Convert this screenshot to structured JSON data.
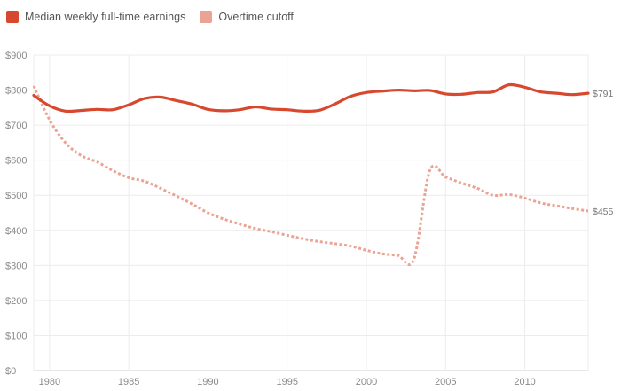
{
  "chart_data": {
    "type": "line",
    "title": "",
    "xlabel": "",
    "ylabel": "",
    "xlim": [
      1979,
      2014
    ],
    "ylim": [
      0,
      900
    ],
    "x_ticks": [
      1980,
      1985,
      1990,
      1995,
      2000,
      2005,
      2010
    ],
    "y_ticks": [
      0,
      100,
      200,
      300,
      400,
      500,
      600,
      700,
      800,
      900
    ],
    "y_tick_labels": [
      "$0",
      "$100",
      "$200",
      "$300",
      "$400",
      "$500",
      "$600",
      "$700",
      "$800",
      "$900"
    ],
    "grid": true,
    "legend_position": "top-left",
    "series": [
      {
        "name": "Median weekly full-time earnings",
        "color": "#d6492f",
        "style": "solid",
        "end_label": "$791",
        "x": [
          1979,
          1980,
          1981,
          1982,
          1983,
          1984,
          1985,
          1986,
          1987,
          1988,
          1989,
          1990,
          1991,
          1992,
          1993,
          1994,
          1995,
          1996,
          1997,
          1998,
          1999,
          2000,
          2001,
          2002,
          2003,
          2004,
          2005,
          2006,
          2007,
          2008,
          2009,
          2010,
          2011,
          2012,
          2013,
          2014
        ],
        "values": [
          785,
          755,
          740,
          742,
          745,
          744,
          758,
          776,
          780,
          770,
          760,
          745,
          741,
          744,
          752,
          746,
          744,
          740,
          742,
          760,
          782,
          793,
          797,
          800,
          798,
          799,
          789,
          788,
          793,
          795,
          815,
          808,
          795,
          791,
          787,
          791
        ]
      },
      {
        "name": "Overtime cutoff",
        "color": "#eba393",
        "style": "dotted",
        "end_label": "$455",
        "x": [
          1979,
          1980,
          1981,
          1982,
          1983,
          1984,
          1985,
          1986,
          1987,
          1988,
          1989,
          1990,
          1991,
          1992,
          1993,
          1994,
          1995,
          1996,
          1997,
          1998,
          1999,
          2000,
          2001,
          2002,
          2003,
          2004,
          2005,
          2006,
          2007,
          2008,
          2009,
          2010,
          2011,
          2012,
          2013,
          2014
        ],
        "values": [
          812,
          715,
          650,
          613,
          595,
          570,
          550,
          540,
          520,
          498,
          475,
          450,
          432,
          418,
          405,
          396,
          386,
          376,
          368,
          362,
          355,
          343,
          333,
          328,
          318,
          570,
          552,
          535,
          520,
          500,
          502,
          492,
          478,
          470,
          462,
          455
        ]
      }
    ]
  }
}
